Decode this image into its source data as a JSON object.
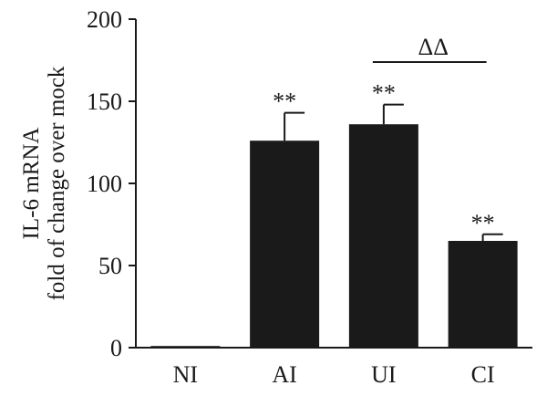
{
  "chart_data": {
    "type": "bar",
    "categories": [
      "NI",
      "AI",
      "UI",
      "CI"
    ],
    "values": [
      1,
      126,
      136,
      65
    ],
    "errors": [
      0,
      17,
      12,
      4
    ],
    "significance": [
      "",
      "**",
      "**",
      "**"
    ],
    "comparison": {
      "from": "UI",
      "to": "CI",
      "label": "ΔΔ"
    },
    "ylabel": [
      "IL-6 mRNA",
      "fold of change over mock"
    ],
    "ylim": [
      0,
      200
    ],
    "yticks": [
      "0",
      "50",
      "100",
      "150",
      "200"
    ],
    "colors": {
      "bar": "#1a1a1a",
      "axis": "#1a1a1a"
    }
  }
}
